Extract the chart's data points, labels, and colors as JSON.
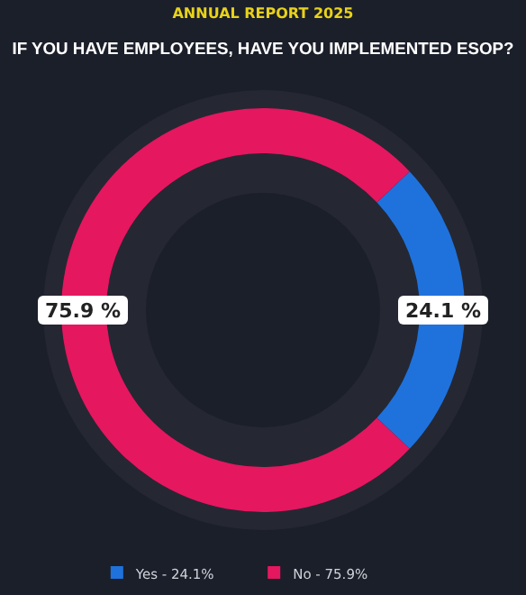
{
  "chart_data": {
    "type": "donut",
    "subtitle": "ANNUAL REPORT 2025",
    "title": "IF YOU HAVE EMPLOYEES, HAVE YOU IMPLEMENTED ESOP?",
    "categories": [
      "Yes - 24.1%",
      "No - 75.9%"
    ],
    "values": [
      24.1,
      75.9
    ],
    "colors": [
      "#1f72dc",
      "#e5175f"
    ],
    "value_labels": [
      "24.1 %",
      "75.9 %"
    ],
    "legend": "bottom"
  }
}
